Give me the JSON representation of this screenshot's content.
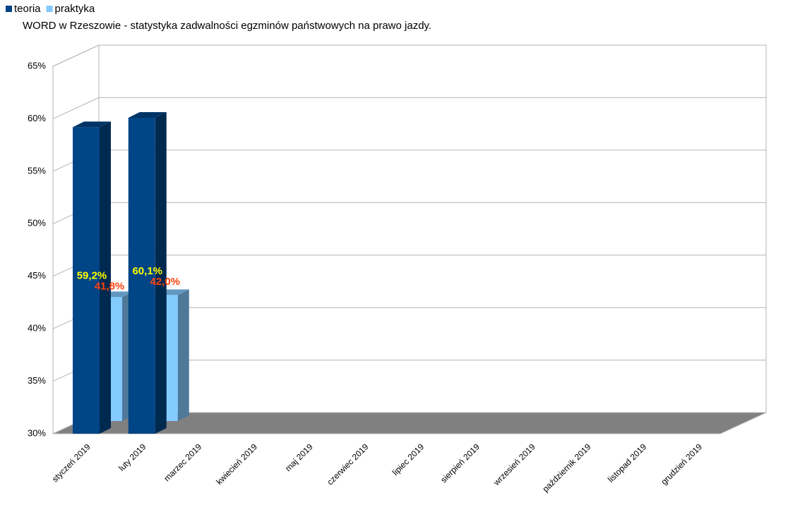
{
  "chart_data": {
    "type": "bar3d",
    "title": "WORD w Rzeszowie - statystyka zadwalności egzminów państwowych na prawo jazdy.",
    "categories": [
      "styczeń 2019",
      "luty 2019",
      "marzec 2019",
      "kwiecień 2019",
      "maj 2019",
      "czerwiec 2019",
      "lipiec 2019",
      "sierpień 2019",
      "wrzesień 2019",
      "październik 2019",
      "listopad 2019",
      "grudzień 2019"
    ],
    "series": [
      {
        "name": "teoria",
        "color": "#004586",
        "values": [
          59.2,
          60.1,
          null,
          null,
          null,
          null,
          null,
          null,
          null,
          null,
          null,
          null
        ],
        "value_labels": [
          "59,2%",
          "60,1%",
          null,
          null,
          null,
          null,
          null,
          null,
          null,
          null,
          null,
          null
        ],
        "label_color": "#ffff00"
      },
      {
        "name": "praktyka",
        "color": "#83caff",
        "values": [
          41.8,
          42.0,
          null,
          null,
          null,
          null,
          null,
          null,
          null,
          null,
          null,
          null
        ],
        "value_labels": [
          "41,8%",
          "42,0%",
          null,
          null,
          null,
          null,
          null,
          null,
          null,
          null,
          null,
          null
        ],
        "label_color": "#ff420e"
      }
    ],
    "ylim": [
      30,
      65
    ],
    "yticks": [
      {
        "value": 30,
        "label": "30%"
      },
      {
        "value": 35,
        "label": "35%"
      },
      {
        "value": 40,
        "label": "40%"
      },
      {
        "value": 45,
        "label": "45%"
      },
      {
        "value": 50,
        "label": "50%"
      },
      {
        "value": 55,
        "label": "55%"
      },
      {
        "value": 60,
        "label": "60%"
      },
      {
        "value": 65,
        "label": "65%"
      }
    ],
    "grid": true,
    "legend": "top-left"
  }
}
